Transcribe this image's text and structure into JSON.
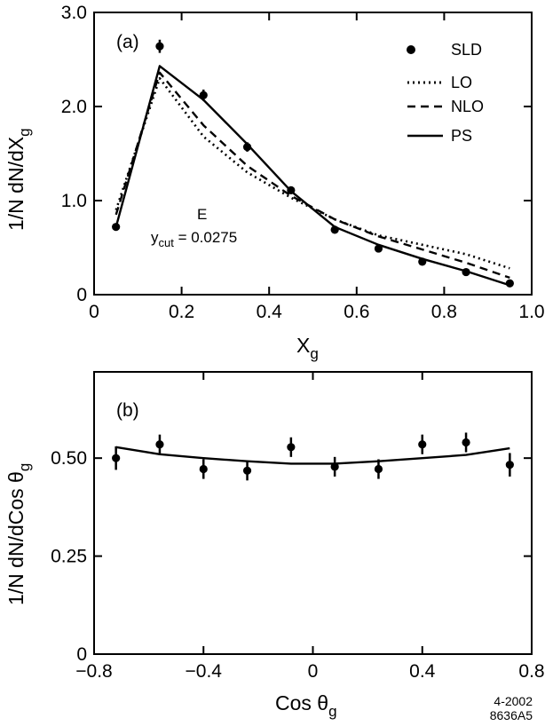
{
  "chart_data": [
    {
      "type": "line",
      "panel_label": "(a)",
      "xlabel": "X",
      "xlabel_sub": "g",
      "ylabel": "1/N dN/dX",
      "ylabel_sub": "g",
      "xlim": [
        0,
        1.0
      ],
      "ylim": [
        0,
        3.0
      ],
      "x_ticks": [
        0,
        0.2,
        0.4,
        0.6,
        0.8,
        1.0
      ],
      "x_tick_labels": [
        "0",
        "0.2",
        "0.4",
        "0.6",
        "0.8",
        "1.0"
      ],
      "y_ticks": [
        0,
        1.0,
        2.0,
        3.0
      ],
      "y_tick_labels": [
        "0",
        "1.0",
        "2.0",
        "3.0"
      ],
      "annotation": {
        "line1": "E",
        "line2_main": "y",
        "line2_sub": "cut",
        "line2_rest": " = 0.0275"
      },
      "legend": [
        {
          "label": "SLD",
          "style": "marker"
        },
        {
          "label": "LO",
          "style": "dotted"
        },
        {
          "label": "NLO",
          "style": "dashed"
        },
        {
          "label": "PS",
          "style": "solid"
        }
      ],
      "legend_position": "top-right",
      "series": [
        {
          "name": "SLD",
          "kind": "points",
          "x": [
            0.05,
            0.15,
            0.25,
            0.35,
            0.45,
            0.55,
            0.65,
            0.75,
            0.85,
            0.95
          ],
          "y": [
            0.72,
            2.64,
            2.12,
            1.57,
            1.11,
            0.69,
            0.49,
            0.35,
            0.24,
            0.12
          ],
          "err": [
            0.03,
            0.07,
            0.06,
            0.05,
            0.04,
            0.04,
            0.04,
            0.03,
            0.03,
            0.02
          ]
        },
        {
          "name": "LO",
          "kind": "dotted",
          "x": [
            0.05,
            0.15,
            0.25,
            0.35,
            0.45,
            0.55,
            0.65,
            0.75,
            0.85,
            0.95
          ],
          "y": [
            0.9,
            2.3,
            1.68,
            1.3,
            1.03,
            0.8,
            0.63,
            0.53,
            0.43,
            0.28
          ]
        },
        {
          "name": "NLO",
          "kind": "dashed",
          "x": [
            0.05,
            0.15,
            0.25,
            0.35,
            0.45,
            0.55,
            0.65,
            0.75,
            0.85,
            0.95
          ],
          "y": [
            0.85,
            2.36,
            1.8,
            1.37,
            1.05,
            0.8,
            0.62,
            0.48,
            0.34,
            0.18
          ]
        },
        {
          "name": "PS",
          "kind": "solid",
          "x": [
            0.05,
            0.15,
            0.25,
            0.35,
            0.45,
            0.55,
            0.65,
            0.75,
            0.85,
            0.95
          ],
          "y": [
            0.72,
            2.43,
            2.07,
            1.6,
            1.1,
            0.72,
            0.53,
            0.38,
            0.25,
            0.1
          ]
        }
      ]
    },
    {
      "type": "line",
      "panel_label": "(b)",
      "xlabel": "Cos θ",
      "xlabel_sub": "g",
      "ylabel": "1/N dN/dCos θ",
      "ylabel_sub": "g",
      "xlim": [
        -0.8,
        0.8
      ],
      "ylim": [
        0,
        0.72
      ],
      "x_ticks": [
        -0.8,
        -0.4,
        0,
        0.4,
        0.8
      ],
      "x_tick_labels": [
        "−0.8",
        "−0.4",
        "0",
        "0.4",
        "0.8"
      ],
      "y_ticks": [
        0,
        0.25,
        0.5
      ],
      "y_tick_labels": [
        "0",
        "0.25",
        "0.50"
      ],
      "series": [
        {
          "name": "SLD",
          "kind": "points",
          "x": [
            -0.72,
            -0.56,
            -0.4,
            -0.24,
            -0.08,
            0.08,
            0.24,
            0.4,
            0.56,
            0.72
          ],
          "y": [
            0.5,
            0.535,
            0.472,
            0.468,
            0.528,
            0.478,
            0.472,
            0.535,
            0.54,
            0.483
          ],
          "err": [
            0.03,
            0.025,
            0.025,
            0.025,
            0.025,
            0.025,
            0.025,
            0.025,
            0.025,
            0.03
          ]
        },
        {
          "name": "PS",
          "kind": "solid",
          "x": [
            -0.72,
            -0.56,
            -0.4,
            -0.24,
            -0.08,
            0.08,
            0.24,
            0.4,
            0.56,
            0.72
          ],
          "y": [
            0.528,
            0.51,
            0.5,
            0.492,
            0.486,
            0.486,
            0.492,
            0.5,
            0.508,
            0.525
          ]
        }
      ]
    }
  ],
  "footer": {
    "line1": "4-2002",
    "line2": "8636A5"
  }
}
